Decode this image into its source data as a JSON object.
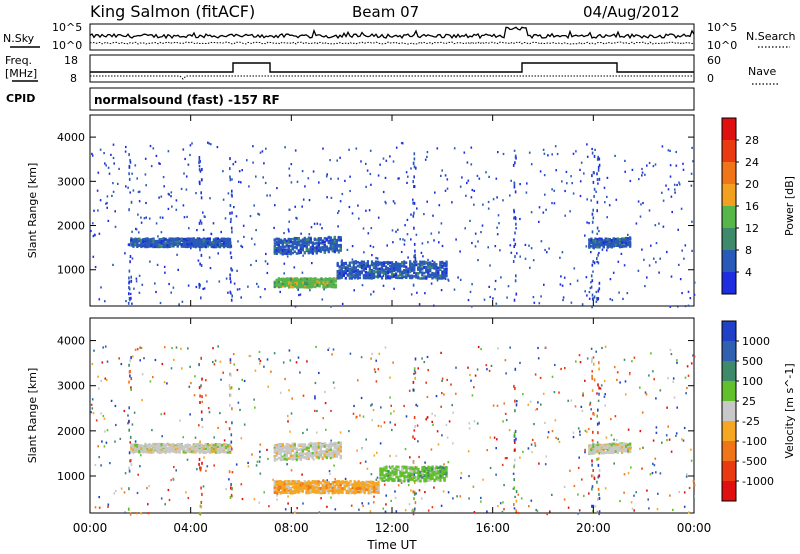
{
  "header": {
    "station": "King Salmon (fitACF)",
    "beam": "Beam 07",
    "date": "04/Aug/2012"
  },
  "strips": {
    "nsky_label": "N.Sky",
    "nsearch_label": "N.Search",
    "noise_ticks_left": [
      "10^5",
      "10^0"
    ],
    "noise_ticks_right": [
      "10^5",
      "10^0"
    ],
    "freq_label_1": "Freq.",
    "freq_label_2": "[MHz]",
    "freq_ticks": [
      "18",
      "8"
    ],
    "nave_label": "Nave",
    "nave_ticks": [
      "60",
      "0"
    ],
    "cpid_label": "CPID",
    "cpid_text": "normalsound (fast) -157 RF"
  },
  "chart_data": [
    {
      "type": "heatmap",
      "title": "Power",
      "ylabel": "Slant Range [km]",
      "xlabel": "",
      "x_ticks": [
        "00:00",
        "04:00",
        "08:00",
        "12:00",
        "16:00",
        "20:00",
        "00:00"
      ],
      "y_ticks": [
        1000,
        2000,
        3000,
        4000
      ],
      "ylim": [
        180,
        4500
      ],
      "xlim_hours": [
        0,
        24
      ],
      "colorbar": {
        "label": "Power [dB]",
        "ticks": [
          4,
          8,
          12,
          16,
          20,
          24,
          28
        ],
        "colors": [
          "#1f2de0",
          "#2a5ab8",
          "#3f8a6a",
          "#56b64a",
          "#f2a020",
          "#f07418",
          "#ea3a12",
          "#e01010"
        ]
      },
      "regions": [
        {
          "t0": 1.6,
          "t1": 5.6,
          "r0": 1480,
          "r1": 1800,
          "level": 1
        },
        {
          "t0": 7.3,
          "t1": 10.0,
          "r0": 1250,
          "r1": 1850,
          "level": 1
        },
        {
          "t0": 7.3,
          "t1": 9.8,
          "r0": 560,
          "r1": 900,
          "level": 3
        },
        {
          "t0": 9.8,
          "t1": 14.2,
          "r0": 700,
          "r1": 1350,
          "level": 1
        },
        {
          "t0": 19.8,
          "t1": 21.5,
          "r0": 1450,
          "r1": 1800,
          "level": 1
        }
      ]
    },
    {
      "type": "heatmap",
      "title": "Velocity",
      "ylabel": "Slant Range [km]",
      "xlabel": "Time UT",
      "x_ticks": [
        "00:00",
        "04:00",
        "08:00",
        "12:00",
        "16:00",
        "20:00",
        "00:00"
      ],
      "y_ticks": [
        1000,
        2000,
        3000,
        4000
      ],
      "ylim": [
        180,
        4500
      ],
      "xlim_hours": [
        0,
        24
      ],
      "colorbar": {
        "label": "Velocity [m s^-1]",
        "ticks": [
          1000,
          500,
          100,
          25,
          -25,
          -100,
          -500,
          -1000
        ],
        "colors": [
          "#2040c8",
          "#3060b0",
          "#3f8a6a",
          "#62c02c",
          "#c8c8c8",
          "#f5a623",
          "#f07418",
          "#ea3a12",
          "#e01010"
        ]
      },
      "regions": [
        {
          "t0": 1.6,
          "t1": 5.6,
          "r0": 1480,
          "r1": 1800,
          "level": 4
        },
        {
          "t0": 7.3,
          "t1": 10.0,
          "r0": 1250,
          "r1": 1850,
          "level": 4
        },
        {
          "t0": 7.3,
          "t1": 11.5,
          "r0": 560,
          "r1": 1000,
          "level": 5
        },
        {
          "t0": 11.5,
          "t1": 14.2,
          "r0": 800,
          "r1": 1350,
          "level": 3
        },
        {
          "t0": 19.8,
          "t1": 21.5,
          "r0": 1450,
          "r1": 1800,
          "level": 4
        }
      ]
    }
  ]
}
